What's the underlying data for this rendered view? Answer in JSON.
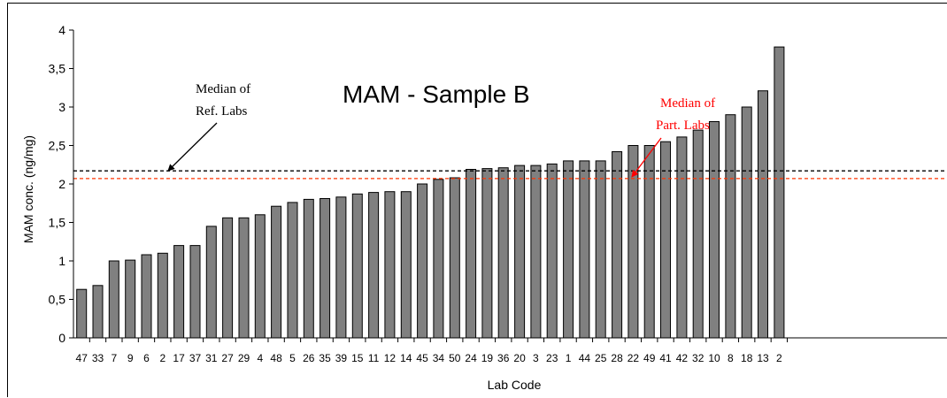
{
  "chart_data": {
    "type": "bar",
    "title": "MAM - Sample B",
    "xlabel": "Lab Code",
    "ylabel": "MAM conc. (ng/mg)",
    "ylim": [
      0,
      4
    ],
    "yticks": [
      "0",
      "0,5",
      "1",
      "1,5",
      "2",
      "2,5",
      "3",
      "3,5",
      "4"
    ],
    "grid": false,
    "bar_color": "#808080",
    "categories": [
      "47",
      "33",
      "7",
      "9",
      "6",
      "2",
      "17",
      "37",
      "31",
      "27",
      "29",
      "4",
      "48",
      "5",
      "26",
      "35",
      "39",
      "15",
      "11",
      "12",
      "14",
      "45",
      "34",
      "50",
      "24",
      "19",
      "36",
      "20",
      "3",
      "23",
      "1",
      "44",
      "25",
      "28",
      "22",
      "49",
      "41",
      "42",
      "32",
      "10",
      "8",
      "18",
      "13",
      "2"
    ],
    "values": [
      0.63,
      0.68,
      1.0,
      1.01,
      1.08,
      1.1,
      1.2,
      1.2,
      1.45,
      1.56,
      1.56,
      1.6,
      1.71,
      1.76,
      1.8,
      1.81,
      1.83,
      1.87,
      1.89,
      1.9,
      1.9,
      2.0,
      2.06,
      2.08,
      2.19,
      2.2,
      2.21,
      2.24,
      2.24,
      2.26,
      2.3,
      2.3,
      2.3,
      2.42,
      2.5,
      2.5,
      2.55,
      2.61,
      2.7,
      2.81,
      2.9,
      3.0,
      3.21,
      3.78
    ],
    "reference_lines": [
      {
        "value": 2.17,
        "color": "#000000",
        "label": "Median of Ref. Labs"
      },
      {
        "value": 2.07,
        "color": "#ff3300",
        "label": "Median of Part. Labs"
      }
    ],
    "annotations": {
      "ref": {
        "line1": "Median of",
        "line2": "Ref. Labs",
        "color": "#000000"
      },
      "part": {
        "line1": "Median of",
        "line2": "Part. Labs",
        "color": "#ff0000"
      }
    }
  }
}
